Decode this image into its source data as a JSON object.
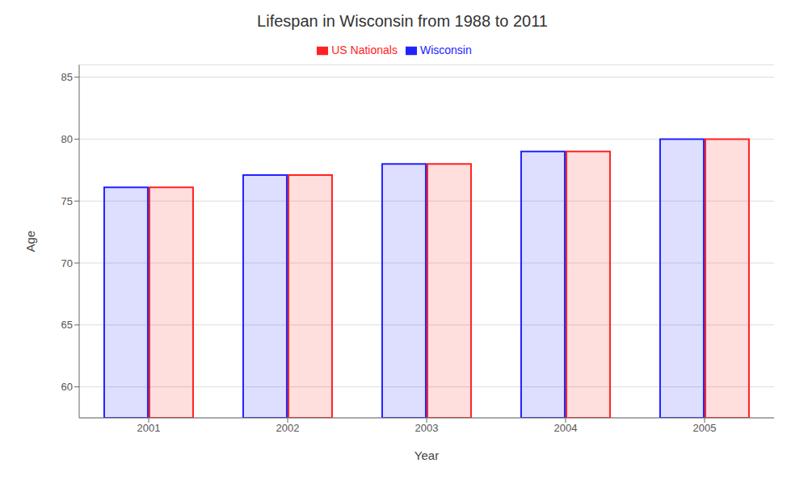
{
  "chart_data": {
    "type": "bar",
    "title": "Lifespan in Wisconsin from 1988 to 2011",
    "x_label": "Year",
    "y_label": "Age",
    "categories": [
      "2001",
      "2002",
      "2003",
      "2004",
      "2005"
    ],
    "series": [
      {
        "name": "Wisconsin",
        "color": "#2222ff",
        "values": [
          76.1,
          77.1,
          78.0,
          79.0,
          80.0
        ]
      },
      {
        "name": "US Nationals",
        "color": "#ff2222",
        "values": [
          76.1,
          77.1,
          78.0,
          79.0,
          80.0
        ]
      }
    ],
    "ylim": [
      57.5,
      86
    ],
    "yticks": [
      60,
      65,
      70,
      75,
      80,
      85
    ],
    "grid": true,
    "legend": "top"
  }
}
